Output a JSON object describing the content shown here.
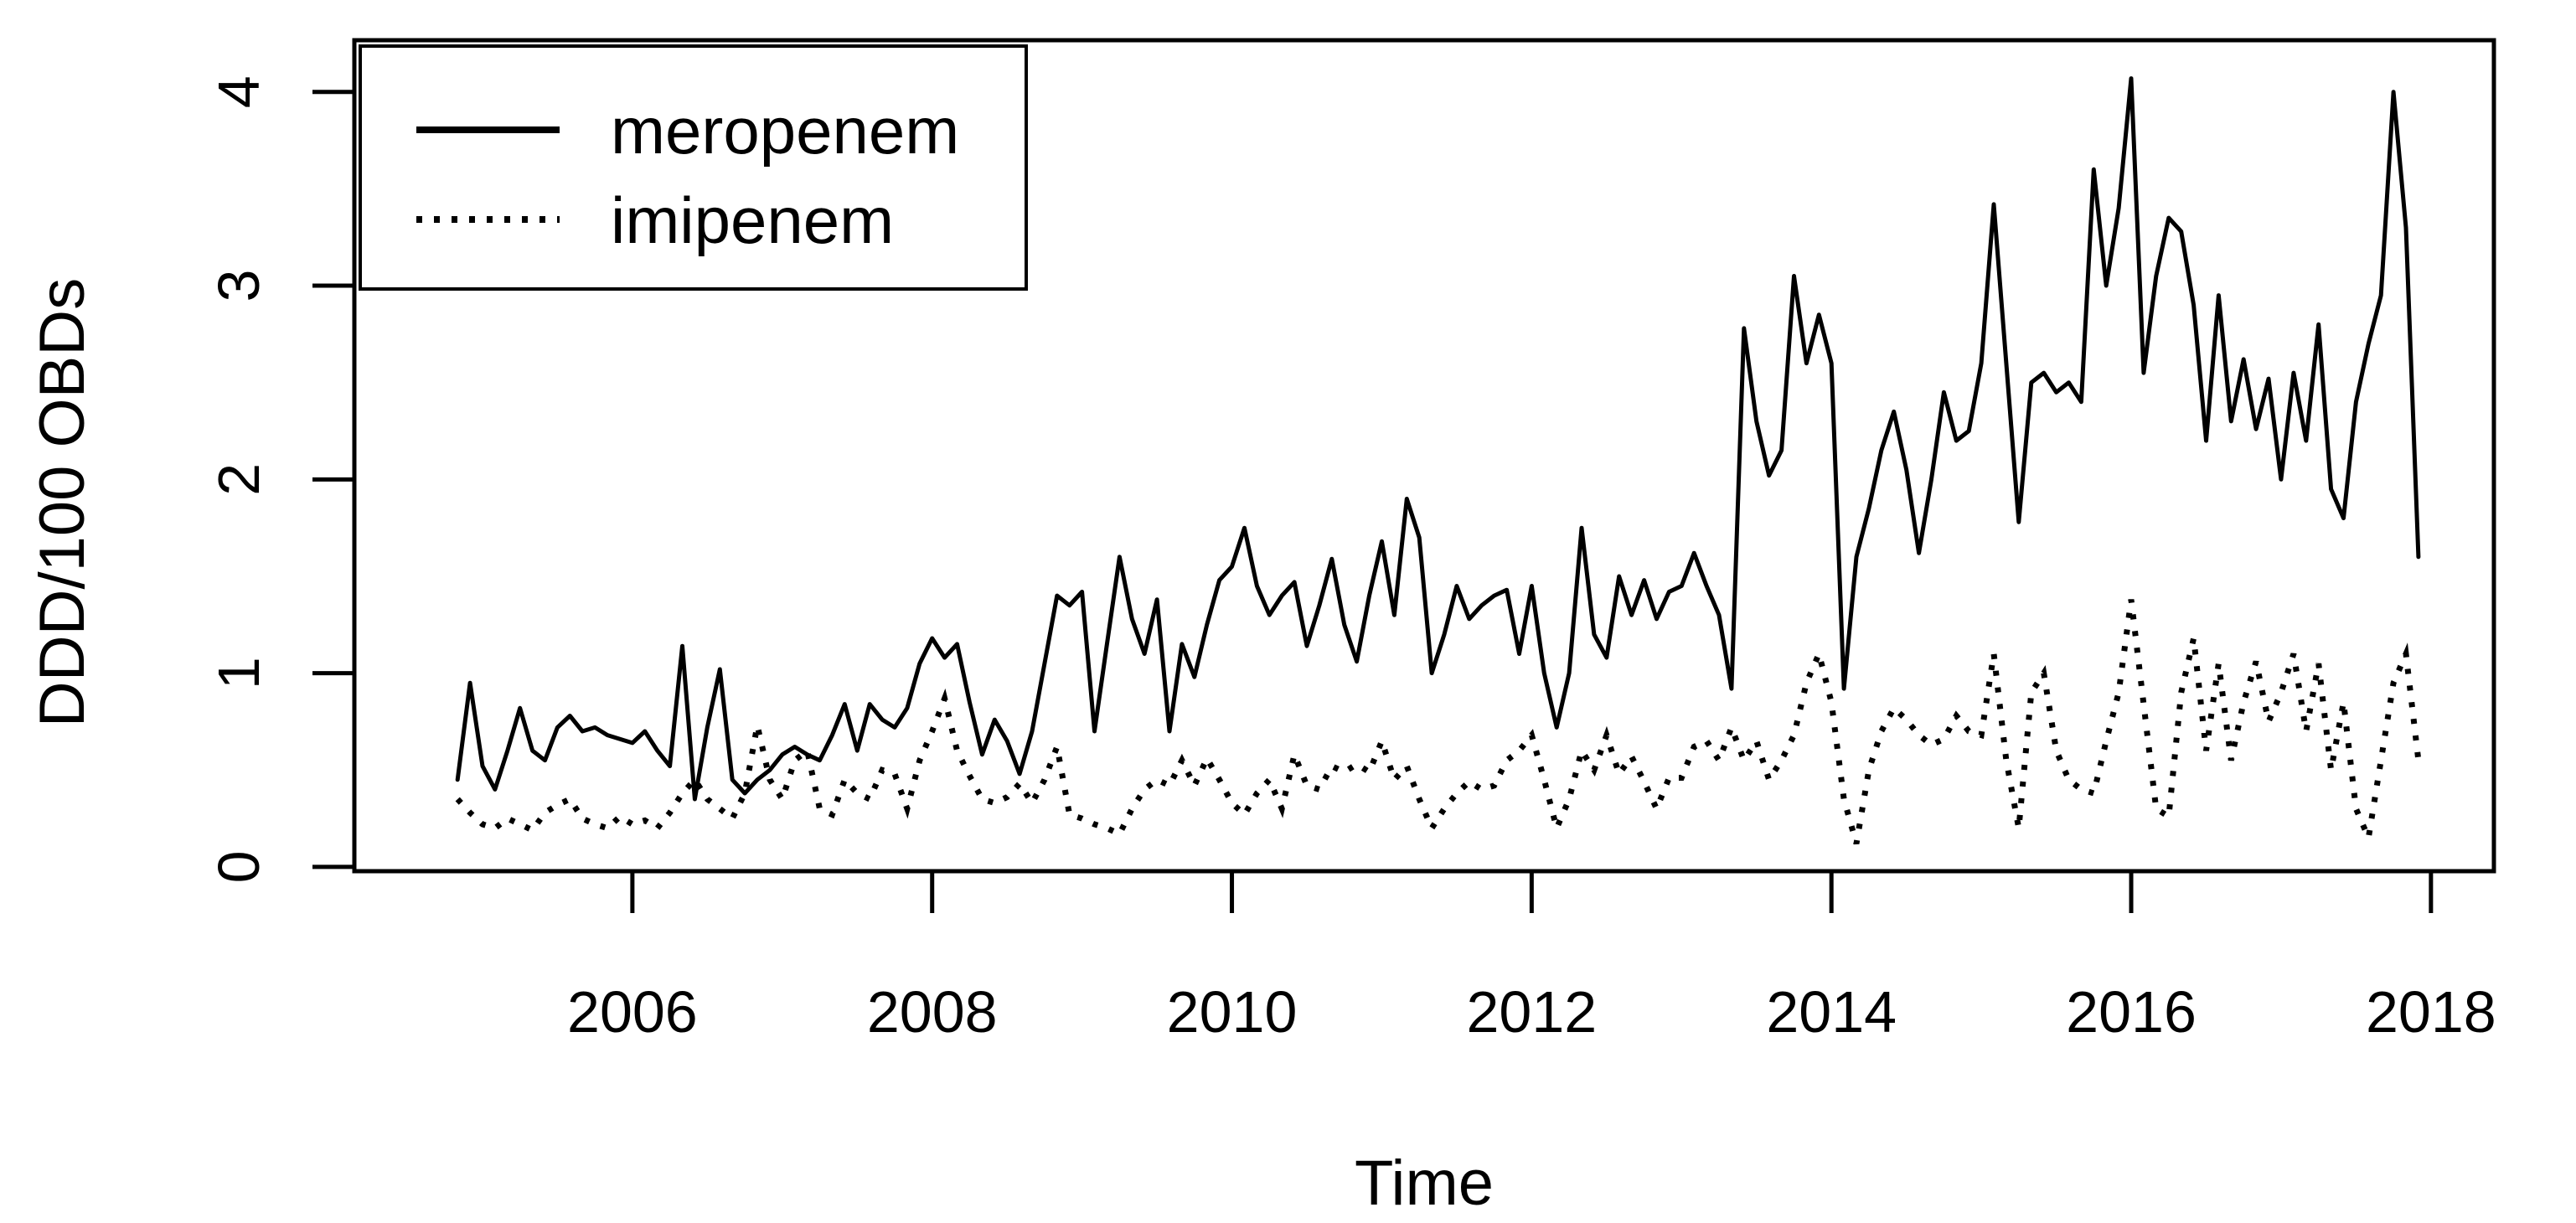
{
  "figure": {
    "background_color": "#ffffff",
    "line_color": "#000000"
  },
  "chart_data": {
    "type": "line",
    "title": "",
    "xlabel": "Time",
    "ylabel": "DDD/100 OBDs",
    "grid": false,
    "legend_position": "top-left",
    "xlim": [
      2004.145,
      2018.42
    ],
    "ylim": [
      -0.022,
      4.267
    ],
    "x_tick_values": [
      2006,
      2008,
      2010,
      2012,
      2014,
      2016,
      2018
    ],
    "x_tick_labels": [
      "2006",
      "2008",
      "2010",
      "2012",
      "2014",
      "2016",
      "2018"
    ],
    "y_tick_values": [
      0,
      1,
      2,
      3,
      4
    ],
    "y_tick_labels": [
      "0",
      "1",
      "2",
      "3",
      "4"
    ],
    "start_year": 2004,
    "start_month": 11,
    "points_per_year": 12,
    "series": [
      {
        "name": "meropenem",
        "line_style": "solid",
        "values": [
          0.45,
          0.95,
          0.52,
          0.4,
          0.6,
          0.82,
          0.6,
          0.55,
          0.72,
          0.78,
          0.7,
          0.72,
          0.68,
          0.66,
          0.64,
          0.7,
          0.6,
          0.52,
          1.14,
          0.35,
          0.72,
          1.02,
          0.45,
          0.38,
          0.45,
          0.5,
          0.58,
          0.62,
          0.58,
          0.55,
          0.68,
          0.84,
          0.6,
          0.84,
          0.76,
          0.72,
          0.82,
          1.05,
          1.18,
          1.08,
          1.15,
          0.85,
          0.58,
          0.76,
          0.65,
          0.48,
          0.7,
          1.05,
          1.4,
          1.35,
          1.42,
          0.7,
          1.15,
          1.6,
          1.28,
          1.1,
          1.38,
          0.7,
          1.15,
          0.98,
          1.25,
          1.48,
          1.55,
          1.75,
          1.45,
          1.3,
          1.4,
          1.47,
          1.14,
          1.35,
          1.59,
          1.25,
          1.06,
          1.4,
          1.68,
          1.3,
          1.9,
          1.7,
          1.0,
          1.2,
          1.45,
          1.28,
          1.35,
          1.4,
          1.43,
          1.1,
          1.45,
          1.0,
          0.72,
          1.0,
          1.75,
          1.2,
          1.08,
          1.5,
          1.3,
          1.48,
          1.28,
          1.42,
          1.45,
          1.62,
          1.45,
          1.3,
          0.92,
          2.78,
          2.3,
          2.02,
          2.15,
          3.05,
          2.6,
          2.85,
          2.6,
          0.92,
          1.6,
          1.85,
          2.15,
          2.35,
          2.05,
          1.62,
          2.0,
          2.45,
          2.2,
          2.25,
          2.6,
          3.42,
          2.6,
          1.78,
          2.5,
          2.55,
          2.45,
          2.5,
          2.4,
          3.6,
          3.0,
          3.4,
          4.07,
          2.55,
          3.05,
          3.35,
          3.28,
          2.9,
          2.2,
          2.95,
          2.3,
          2.62,
          2.26,
          2.52,
          2.0,
          2.55,
          2.2,
          2.8,
          1.95,
          1.8,
          2.4,
          2.7,
          2.95,
          4.0,
          3.3,
          1.6
        ]
      },
      {
        "name": "imipenem",
        "line_style": "dotted",
        "values": [
          0.35,
          0.28,
          0.22,
          0.2,
          0.25,
          0.22,
          0.19,
          0.28,
          0.32,
          0.35,
          0.25,
          0.22,
          0.2,
          0.26,
          0.22,
          0.24,
          0.2,
          0.28,
          0.38,
          0.45,
          0.35,
          0.3,
          0.25,
          0.38,
          0.73,
          0.45,
          0.35,
          0.55,
          0.6,
          0.3,
          0.27,
          0.45,
          0.38,
          0.35,
          0.5,
          0.48,
          0.3,
          0.55,
          0.7,
          0.87,
          0.6,
          0.47,
          0.35,
          0.33,
          0.36,
          0.43,
          0.33,
          0.45,
          0.62,
          0.27,
          0.25,
          0.22,
          0.2,
          0.17,
          0.3,
          0.4,
          0.45,
          0.42,
          0.55,
          0.42,
          0.56,
          0.45,
          0.33,
          0.27,
          0.38,
          0.45,
          0.3,
          0.58,
          0.42,
          0.4,
          0.52,
          0.49,
          0.53,
          0.49,
          0.65,
          0.45,
          0.52,
          0.35,
          0.2,
          0.3,
          0.38,
          0.44,
          0.4,
          0.42,
          0.55,
          0.6,
          0.68,
          0.45,
          0.2,
          0.35,
          0.6,
          0.5,
          0.68,
          0.48,
          0.57,
          0.44,
          0.3,
          0.46,
          0.46,
          0.62,
          0.65,
          0.55,
          0.72,
          0.55,
          0.65,
          0.45,
          0.55,
          0.68,
          0.95,
          1.1,
          0.85,
          0.35,
          0.12,
          0.5,
          0.7,
          0.82,
          0.76,
          0.68,
          0.63,
          0.66,
          0.78,
          0.7,
          0.68,
          1.1,
          0.55,
          0.2,
          0.9,
          1.0,
          0.6,
          0.45,
          0.4,
          0.38,
          0.65,
          0.9,
          1.38,
          0.84,
          0.3,
          0.26,
          0.9,
          1.18,
          0.6,
          1.05,
          0.55,
          0.85,
          1.06,
          0.75,
          0.9,
          1.1,
          0.7,
          1.05,
          0.5,
          0.85,
          0.3,
          0.15,
          0.55,
          0.95,
          1.1,
          0.55
        ]
      }
    ]
  }
}
